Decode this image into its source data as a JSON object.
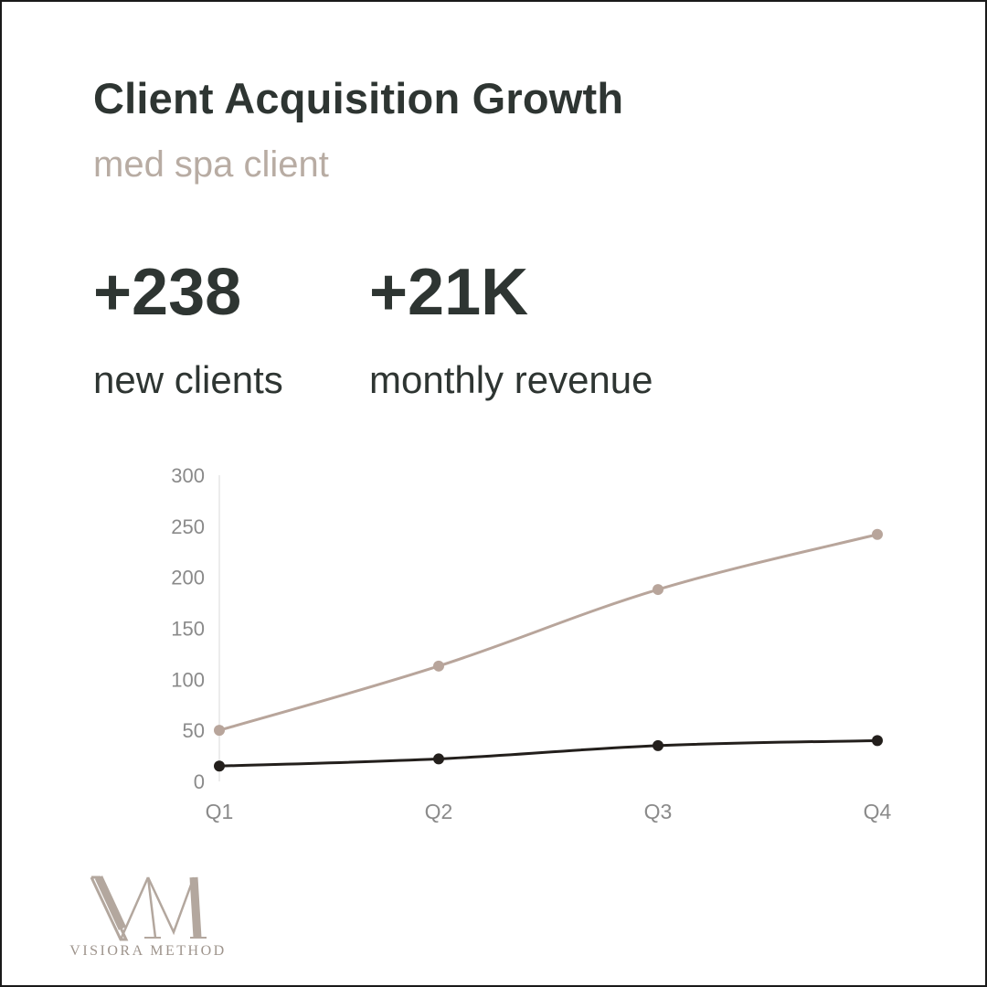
{
  "header": {
    "title": "Client Acquisition Growth",
    "subtitle": "med spa client"
  },
  "stats": [
    {
      "value": "+238",
      "label": "new clients"
    },
    {
      "value": "+21K",
      "label": "monthly revenue"
    }
  ],
  "colors": {
    "series_light": "#b8a59b",
    "series_dark": "#231f1c",
    "axis_text": "#8a8a8a",
    "grid": "#e6e6e6"
  },
  "chart_data": {
    "type": "line",
    "categories": [
      "Q1",
      "Q2",
      "Q3",
      "Q4"
    ],
    "series": [
      {
        "values": [
          50,
          113,
          188,
          242
        ]
      },
      {
        "values": [
          15,
          22,
          35,
          40
        ]
      }
    ],
    "yticks": [
      0,
      50,
      100,
      150,
      200,
      250,
      300
    ],
    "ylim": [
      0,
      300
    ],
    "grid": false,
    "title": "",
    "xlabel": "",
    "ylabel": ""
  },
  "logo": {
    "monogram": "VM",
    "text": "VISIORA METHOD"
  }
}
